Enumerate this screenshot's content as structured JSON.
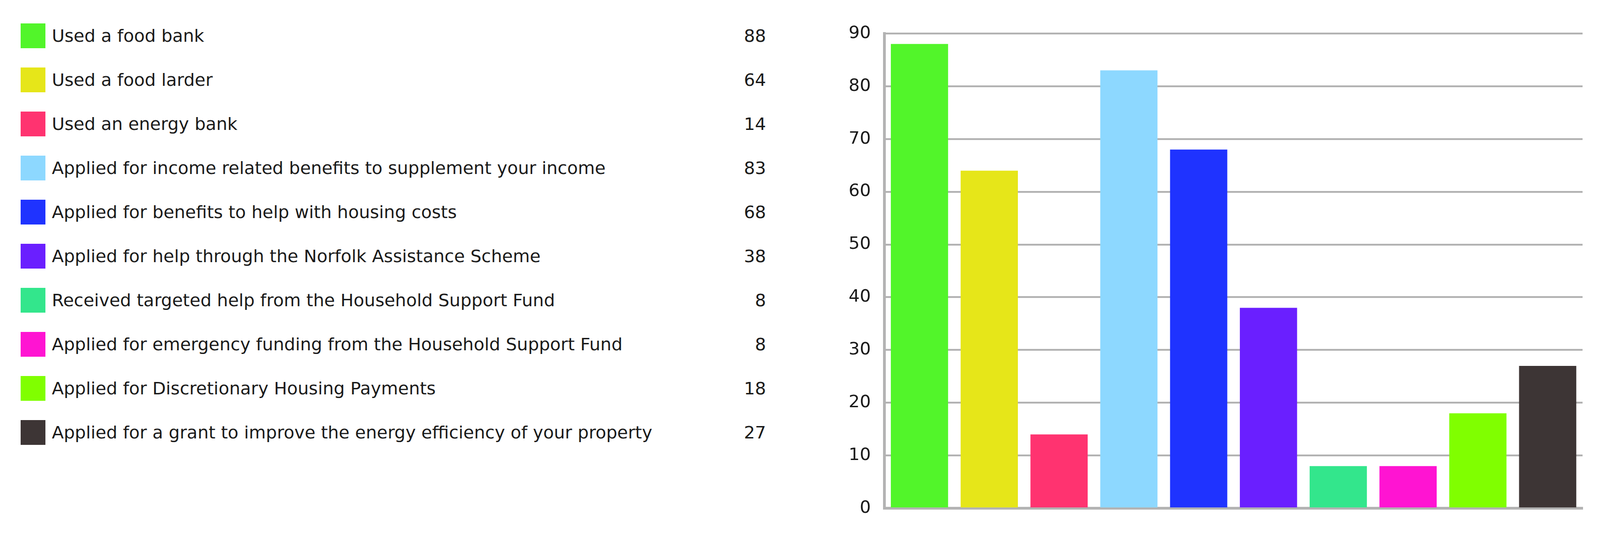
{
  "chart_data": {
    "type": "bar",
    "categories": [
      "Used a food bank",
      "Used a food larder",
      "Used an energy bank",
      "Applied for income related benefits to supplement your income",
      "Applied for benefits to help with housing costs",
      "Applied for help through the Norfolk Assistance Scheme",
      "Received targeted help from the Household Support Fund",
      "Applied for emergency funding from the Household Support Fund",
      "Applied for Discretionary Housing Payments",
      "Applied for a grant to improve the energy efficiency of your property"
    ],
    "values": [
      88,
      64,
      14,
      83,
      68,
      38,
      8,
      8,
      18,
      27
    ],
    "colors": [
      "#52f52a",
      "#e6e619",
      "#ff3370",
      "#8dd8ff",
      "#1f33ff",
      "#6a1fff",
      "#33e68c",
      "#ff14d2",
      "#80ff00",
      "#3d3535"
    ],
    "ylim": [
      0,
      90
    ],
    "yticks": [
      0,
      10,
      20,
      30,
      40,
      50,
      60,
      70,
      80,
      90
    ],
    "grid": true,
    "legend": "left",
    "tick_labels": "y"
  }
}
